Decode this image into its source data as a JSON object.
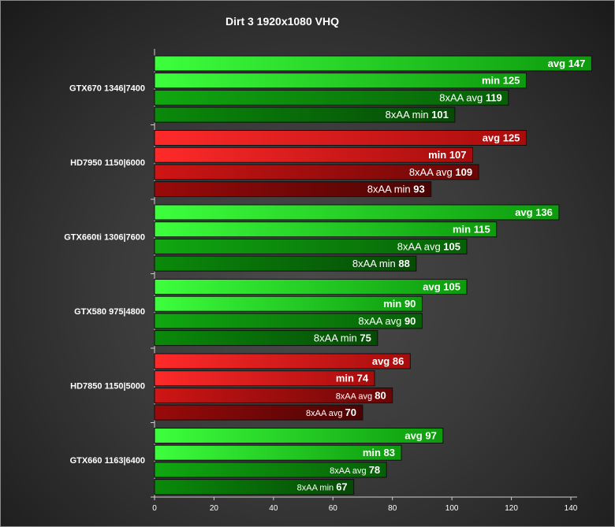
{
  "chart_data": {
    "type": "bar",
    "orientation": "horizontal",
    "title": "Dirt 3 1920x1080 VHQ",
    "xlim": [
      0,
      140
    ],
    "x_ticks": [
      0,
      20,
      40,
      60,
      80,
      100,
      120,
      140
    ],
    "grid": false,
    "legend": "none",
    "colors": {
      "green_light": "#33ff33",
      "green_mid": "#0a9a0a",
      "green_dark": "#0a6a0a",
      "red_light": "#ff2222",
      "red_mid": "#b01010",
      "red_dark": "#7a0808"
    },
    "groups": [
      {
        "label": "GTX670 1346|7400",
        "color": "green",
        "bars": [
          {
            "prefix": "avg",
            "value": 147
          },
          {
            "prefix": "min",
            "value": 125
          },
          {
            "prefix": "8xAA avg",
            "value": 119
          },
          {
            "prefix": "8xAA min",
            "value": 101
          }
        ]
      },
      {
        "label": "HD7950 1150|6000",
        "color": "red",
        "bars": [
          {
            "prefix": "avg",
            "value": 125
          },
          {
            "prefix": "min",
            "value": 107
          },
          {
            "prefix": "8xAA avg",
            "value": 109
          },
          {
            "prefix": "8xAA min",
            "value": 93
          }
        ]
      },
      {
        "label": "GTX660ti 1306|7600",
        "color": "green",
        "bars": [
          {
            "prefix": "avg",
            "value": 136
          },
          {
            "prefix": "min",
            "value": 115
          },
          {
            "prefix": "8xAA avg",
            "value": 105
          },
          {
            "prefix": "8xAA min",
            "value": 88
          }
        ]
      },
      {
        "label": "GTX580 975|4800",
        "color": "green",
        "bars": [
          {
            "prefix": "avg",
            "value": 105
          },
          {
            "prefix": "min",
            "value": 90
          },
          {
            "prefix": "8xAA avg",
            "value": 90
          },
          {
            "prefix": "8xAA min",
            "value": 75
          }
        ]
      },
      {
        "label": "HD7850 1150|5000",
        "color": "red",
        "bars": [
          {
            "prefix": "avg",
            "value": 86
          },
          {
            "prefix": "min",
            "value": 74
          },
          {
            "prefix": "8xAA avg",
            "value": 80
          },
          {
            "prefix": "8xAA avg",
            "value": 70
          }
        ]
      },
      {
        "label": "GTX660 1163|6400",
        "color": "green",
        "bars": [
          {
            "prefix": "avg",
            "value": 97
          },
          {
            "prefix": "min",
            "value": 83
          },
          {
            "prefix": "8xAA avg",
            "value": 78
          },
          {
            "prefix": "8xAA min",
            "value": 67
          }
        ]
      }
    ]
  }
}
